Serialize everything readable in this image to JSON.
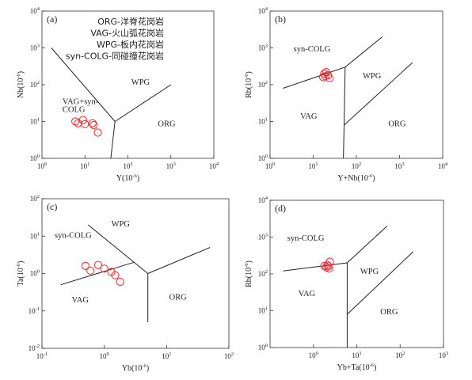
{
  "chart_data": [
    {
      "type": "scatter",
      "panel_label": "(a)",
      "xlabel": "Y(10⁻⁶)",
      "ylabel": "Nb(10⁻⁶)",
      "x_scale": "log",
      "y_scale": "log",
      "xlim": [
        1,
        10000
      ],
      "ylim": [
        1,
        10000
      ],
      "x_ticks": [
        "10⁰",
        "10¹",
        "10²",
        "10³",
        "10⁴"
      ],
      "y_ticks": [
        "10⁰",
        "10¹",
        "10²",
        "10³",
        "10⁴"
      ],
      "legend": [
        "ORG-洋脊花岗岩",
        "VAG-火山弧花岗岩",
        "WPG-板内花岗岩",
        "syn-COLG-同碰撞花岗岩"
      ],
      "regions": [
        {
          "label": "WPG",
          "at": [
            120,
            100
          ]
        },
        {
          "label": "VAG+syn-",
          "at": [
            3.0,
            30
          ]
        },
        {
          "label": "COLG",
          "at": [
            3.0,
            18
          ]
        },
        {
          "label": "ORG",
          "at": [
            500,
            7.5
          ]
        }
      ],
      "boundaries": [
        [
          [
            1.65,
            1000
          ],
          [
            50,
            10
          ],
          [
            1000,
            100
          ]
        ],
        [
          [
            50,
            10
          ],
          [
            40,
            1
          ]
        ]
      ],
      "points": [
        [
          6,
          10
        ],
        [
          7,
          9
        ],
        [
          9,
          11
        ],
        [
          10,
          8.5
        ],
        [
          15,
          9
        ],
        [
          16,
          8
        ],
        [
          20,
          5
        ]
      ]
    },
    {
      "type": "scatter",
      "panel_label": "(b)",
      "xlabel": "Y+Nb(10⁻⁶)",
      "ylabel": "Rb(10⁻⁶)",
      "x_scale": "log",
      "y_scale": "log",
      "xlim": [
        1,
        10000
      ],
      "ylim": [
        1,
        10000
      ],
      "x_ticks": [
        "10⁰",
        "10¹",
        "10²",
        "10³",
        "10⁴"
      ],
      "y_ticks": [
        "10⁰",
        "10¹",
        "10²",
        "10³",
        "10⁴"
      ],
      "regions": [
        {
          "label": "syn-COLG",
          "at": [
            3.5,
            800
          ]
        },
        {
          "label": "WPG",
          "at": [
            140,
            150
          ]
        },
        {
          "label": "VAG",
          "at": [
            5,
            12
          ]
        },
        {
          "label": "ORG",
          "at": [
            550,
            7.5
          ]
        }
      ],
      "boundaries": [
        [
          [
            2,
            80
          ],
          [
            55,
            300
          ],
          [
            400,
            2000
          ]
        ],
        [
          [
            55,
            300
          ],
          [
            52,
            8
          ],
          [
            50,
            1
          ]
        ],
        [
          [
            52,
            8
          ],
          [
            2000,
            400
          ]
        ]
      ],
      "points": [
        [
          18,
          200
        ],
        [
          20,
          220
        ],
        [
          22,
          180
        ],
        [
          17,
          160
        ],
        [
          24,
          150
        ],
        [
          19,
          170
        ]
      ]
    },
    {
      "type": "scatter",
      "panel_label": "(c)",
      "xlabel": "Yb(10⁻⁶)",
      "ylabel": "Ta(10⁻⁶)",
      "x_scale": "log",
      "y_scale": "log",
      "xlim": [
        0.1,
        100
      ],
      "ylim": [
        0.01,
        100
      ],
      "x_ticks": [
        "10⁻¹",
        "10⁰",
        "10¹",
        "10²"
      ],
      "y_ticks": [
        "10⁻²",
        "10⁻¹",
        "10⁰",
        "10¹",
        "10²"
      ],
      "regions": [
        {
          "label": "WPG",
          "at": [
            1.3,
            18
          ]
        },
        {
          "label": "syn-COLG",
          "at": [
            0.16,
            9
          ]
        },
        {
          "label": "VAG",
          "at": [
            0.3,
            0.17
          ]
        },
        {
          "label": "ORG",
          "at": [
            11,
            0.2
          ]
        }
      ],
      "boundaries": [
        [
          [
            0.55,
            20
          ],
          [
            3,
            2
          ],
          [
            5,
            1
          ]
        ],
        [
          [
            0.2,
            0.5
          ],
          [
            3,
            2
          ]
        ],
        [
          [
            5,
            1
          ],
          [
            5,
            0.05
          ]
        ],
        [
          [
            5,
            1
          ],
          [
            50,
            5
          ]
        ]
      ],
      "points": [
        [
          0.5,
          1.6
        ],
        [
          0.6,
          1.2
        ],
        [
          0.8,
          1.7
        ],
        [
          1.0,
          1.35
        ],
        [
          1.3,
          1.1
        ],
        [
          1.5,
          0.9
        ],
        [
          1.8,
          0.6
        ]
      ]
    },
    {
      "type": "scatter",
      "panel_label": "(d)",
      "xlabel": "Yb+Ta(10⁻⁶)",
      "ylabel": "Rb(10⁻⁶)",
      "x_scale": "log",
      "y_scale": "log",
      "xlim": [
        0.1,
        1000
      ],
      "ylim": [
        1,
        10000
      ],
      "x_ticks": [
        "10⁰",
        "10¹",
        "10²",
        "10³"
      ],
      "x_tick_values": [
        1,
        10,
        100,
        1000
      ],
      "y_ticks": [
        "10⁰",
        "10¹",
        "10²",
        "10³",
        "10⁴"
      ],
      "regions": [
        {
          "label": "syn-COLG",
          "at": [
            0.25,
            800
          ]
        },
        {
          "label": "WPG",
          "at": [
            12,
            100
          ]
        },
        {
          "label": "VAG",
          "at": [
            0.45,
            25
          ]
        },
        {
          "label": "ORG",
          "at": [
            35,
            8
          ]
        }
      ],
      "boundaries": [
        [
          [
            0.2,
            120
          ],
          [
            6,
            200
          ],
          [
            50,
            2000
          ]
        ],
        [
          [
            6,
            200
          ],
          [
            6,
            1
          ]
        ],
        [
          [
            6,
            8
          ],
          [
            200,
            400
          ]
        ]
      ],
      "points": [
        [
          1.8,
          165
        ],
        [
          2.0,
          150
        ],
        [
          2.1,
          175
        ],
        [
          2.3,
          140
        ],
        [
          2.4,
          215
        ],
        [
          2.2,
          160
        ]
      ]
    }
  ]
}
